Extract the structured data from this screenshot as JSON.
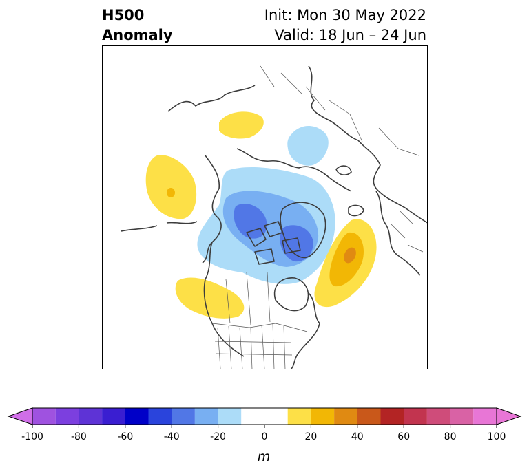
{
  "header": {
    "title_line1": "H500",
    "title_line2": "Anomaly",
    "init_label": "Init: Mon 30 May 2022",
    "valid_label": "Valid: 18 Jun – 24 Jun"
  },
  "map": {
    "projection": "north polar stereographic",
    "field": "500 hPa geopotential height anomaly",
    "features": [
      {
        "name": "Eastern Siberia positive anomaly",
        "sign": "positive",
        "peak": 15
      },
      {
        "name": "Gulf of Alaska positive anomaly",
        "sign": "positive",
        "peak": 25
      },
      {
        "name": "Western US / Rockies positive anomaly",
        "sign": "positive",
        "peak": 15
      },
      {
        "name": "North Atlantic positive anomaly",
        "sign": "positive",
        "peak": 35
      },
      {
        "name": "Arctic / Canadian Archipelago negative anomaly",
        "sign": "negative",
        "peak": -35
      },
      {
        "name": "Scandinavia / NW Russia negative anomaly",
        "sign": "negative",
        "peak": -15
      }
    ]
  },
  "colorbar": {
    "unit_label": "m",
    "min": -100,
    "max": 100,
    "tick_labels": [
      "-100",
      "-80",
      "-60",
      "-40",
      "-20",
      "0",
      "20",
      "40",
      "60",
      "80",
      "100"
    ],
    "bins": [
      {
        "from": -100,
        "to": -90,
        "color": "#9f52e0"
      },
      {
        "from": -90,
        "to": -80,
        "color": "#7c3fdf"
      },
      {
        "from": -80,
        "to": -70,
        "color": "#5e33d6"
      },
      {
        "from": -70,
        "to": -60,
        "color": "#3a1ed1"
      },
      {
        "from": -60,
        "to": -50,
        "color": "#0000c8"
      },
      {
        "from": -50,
        "to": -40,
        "color": "#2a44dc"
      },
      {
        "from": -40,
        "to": -30,
        "color": "#5177e6"
      },
      {
        "from": -30,
        "to": -20,
        "color": "#78aff2"
      },
      {
        "from": -20,
        "to": -10,
        "color": "#acdcf8"
      },
      {
        "from": -10,
        "to": 10,
        "color": "#ffffff"
      },
      {
        "from": 10,
        "to": 20,
        "color": "#fde047"
      },
      {
        "from": 20,
        "to": 30,
        "color": "#f2b705"
      },
      {
        "from": 30,
        "to": 40,
        "color": "#e08a12"
      },
      {
        "from": 40,
        "to": 50,
        "color": "#c9581a"
      },
      {
        "from": 50,
        "to": 60,
        "color": "#b32424"
      },
      {
        "from": 60,
        "to": 70,
        "color": "#c2344f"
      },
      {
        "from": 70,
        "to": 80,
        "color": "#cf4c7a"
      },
      {
        "from": 80,
        "to": 90,
        "color": "#d962a5"
      },
      {
        "from": 90,
        "to": 100,
        "color": "#e876d6"
      }
    ],
    "under_color": "#d06ee8",
    "over_color": "#e876d6"
  }
}
